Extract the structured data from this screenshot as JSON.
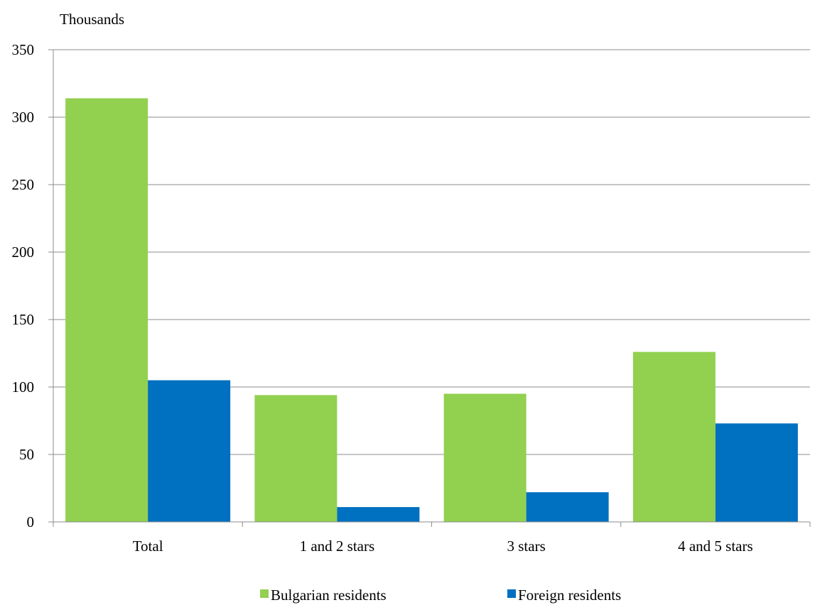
{
  "chart_data": {
    "type": "bar",
    "unit_label": "Thousands",
    "categories": [
      "Total",
      "1 and 2 stars",
      "3 stars",
      "4 and 5 stars"
    ],
    "series": [
      {
        "name": "Bulgarian residents",
        "color": "#92d050",
        "values": [
          314,
          94,
          95,
          126
        ]
      },
      {
        "name": "Foreign residents",
        "color": "#0070c0",
        "values": [
          105,
          11,
          22,
          73
        ]
      }
    ],
    "ylim": [
      0,
      350
    ],
    "yticks": [
      0,
      50,
      100,
      150,
      200,
      250,
      300,
      350
    ],
    "grid": true,
    "legend_position": "bottom"
  }
}
